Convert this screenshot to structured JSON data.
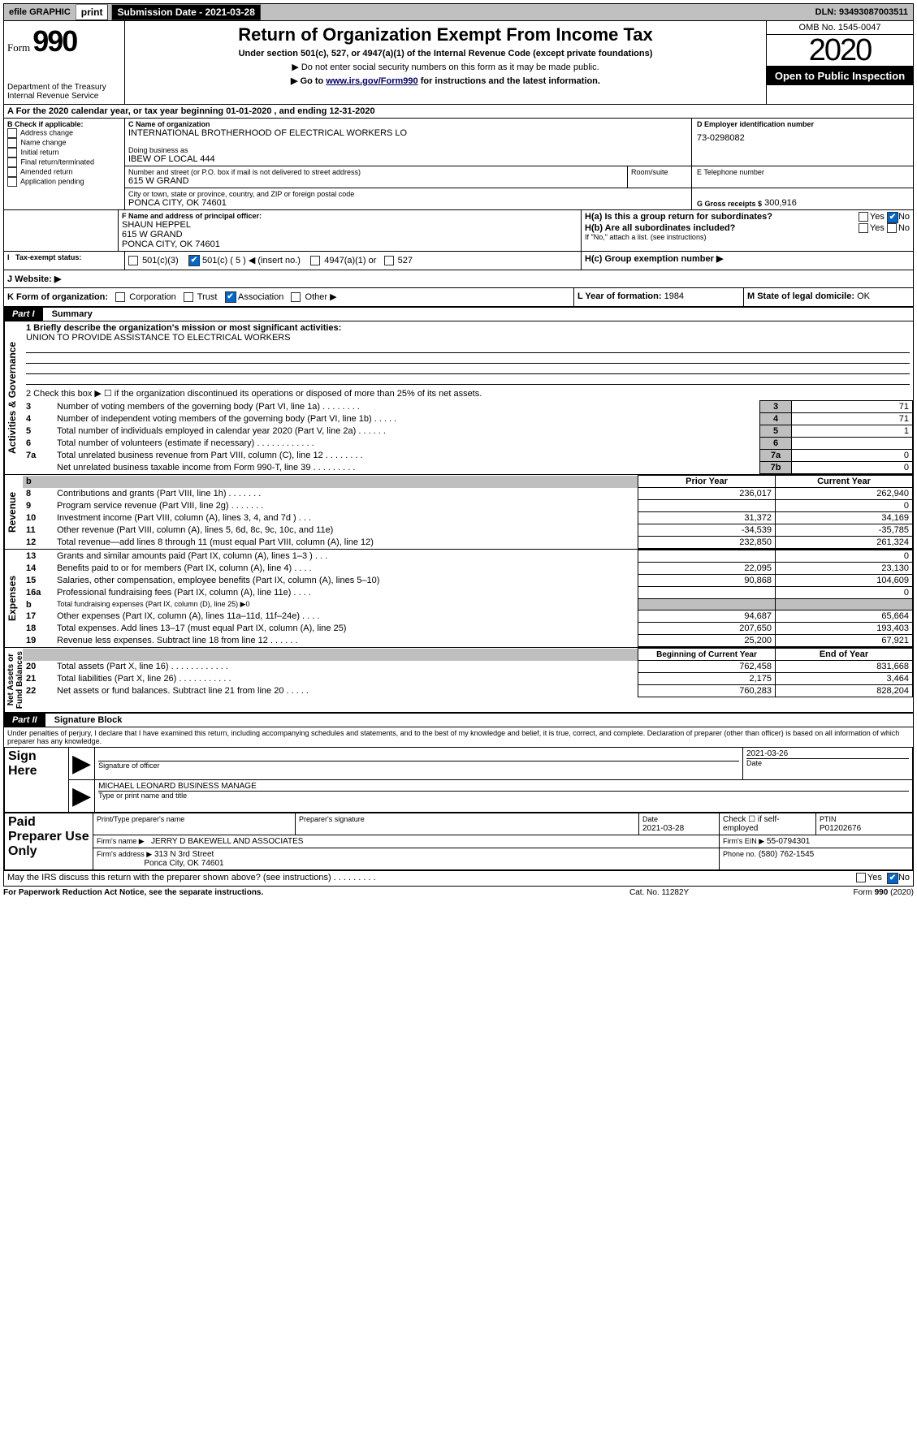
{
  "topbar": {
    "efile": "efile GRAPHIC",
    "print": "print",
    "subdate_label": "Submission Date - 2021-03-28",
    "dln": "DLN: 93493087003511"
  },
  "header": {
    "form_label": "Form",
    "form_num": "990",
    "dept": "Department of the Treasury\nInternal Revenue Service",
    "title": "Return of Organization Exempt From Income Tax",
    "subtitle": "Under section 501(c), 527, or 4947(a)(1) of the Internal Revenue Code (except private foundations)",
    "note1": "▶ Do not enter social security numbers on this form as it may be made public.",
    "note2_pre": "▶ Go to ",
    "note2_link": "www.irs.gov/Form990",
    "note2_post": " for instructions and the latest information.",
    "omb": "OMB No. 1545-0047",
    "year": "2020",
    "inspect": "Open to Public Inspection"
  },
  "period": {
    "text": "A   For the 2020 calendar year, or tax year beginning 01-01-2020    , and ending 12-31-2020"
  },
  "boxB": {
    "label": "B Check if applicable:",
    "items": [
      "Address change",
      "Name change",
      "Initial return",
      "Final return/terminated",
      "Amended return",
      "Application pending"
    ]
  },
  "boxC": {
    "name_label": "C Name of organization",
    "name": "INTERNATIONAL BROTHERHOOD OF ELECTRICAL WORKERS LO",
    "dba_label": "Doing business as",
    "dba": "IBEW OF LOCAL 444",
    "street_label": "Number and street (or P.O. box if mail is not delivered to street address)",
    "room_label": "Room/suite",
    "street": "615 W GRAND",
    "city_label": "City or town, state or province, country, and ZIP or foreign postal code",
    "city": "PONCA CITY, OK  74601"
  },
  "boxD": {
    "label": "D Employer identification number",
    "value": "73-0298082"
  },
  "boxE": {
    "label": "E Telephone number",
    "value": ""
  },
  "boxG": {
    "label": "G Gross receipts $",
    "value": "300,916"
  },
  "boxF": {
    "label": "F  Name and address of principal officer:",
    "name": "SHAUN HEPPEL",
    "addr1": "615 W GRAND",
    "addr2": "PONCA CITY, OK  74601"
  },
  "boxH": {
    "a_label": "H(a)  Is this a group return for subordinates?",
    "a_yes": "Yes",
    "a_no": "No",
    "b_label": "H(b)  Are all subordinates included?",
    "b_note": "If \"No,\" attach a list. (see instructions)",
    "c_label": "H(c)  Group exemption number ▶"
  },
  "taxexempt": {
    "label": "Tax-exempt status:",
    "opt1": "501(c)(3)",
    "opt2_pre": "501(c) ( 5 ) ◀ (insert no.)",
    "opt3": "4947(a)(1) or",
    "opt4": "527"
  },
  "website": {
    "label": "J   Website: ▶"
  },
  "boxK": {
    "label": "K Form of organization:",
    "opts": [
      "Corporation",
      "Trust",
      "Association",
      "Other ▶"
    ]
  },
  "boxL": {
    "label": "L Year of formation:",
    "value": "1984"
  },
  "boxM": {
    "label": "M State of legal domicile:",
    "value": "OK"
  },
  "part1": {
    "header": "Part I",
    "title": "Summary"
  },
  "p1_q1": {
    "label": "1  Briefly describe the organization's mission or most significant activities:",
    "text": "UNION TO PROVIDE ASSISTANCE TO ELECTRICAL WORKERS"
  },
  "p1_q2": "2   Check this box ▶ ☐  if the organization discontinued its operations or disposed of more than 25% of its net assets.",
  "p1_lines_top": [
    {
      "n": "3",
      "desc": "Number of voting members of the governing body (Part VI, line 1a)   .    .    .    .    .    .    .    .",
      "box": "3",
      "val": "71"
    },
    {
      "n": "4",
      "desc": "Number of independent voting members of the governing body (Part VI, line 1b)    .    .    .    .    .",
      "box": "4",
      "val": "71"
    },
    {
      "n": "5",
      "desc": "Total number of individuals employed in calendar year 2020 (Part V, line 2a)    .    .    .    .    .    .",
      "box": "5",
      "val": "1"
    },
    {
      "n": "6",
      "desc": "Total number of volunteers (estimate if necessary)    .    .    .    .    .    .    .    .    .    .    .    .",
      "box": "6",
      "val": ""
    },
    {
      "n": "7a",
      "desc": "Total unrelated business revenue from Part VIII, column (C), line 12    .    .    .    .    .    .    .    .",
      "box": "7a",
      "val": "0"
    },
    {
      "n": "",
      "desc": "Net unrelated business taxable income from Form 990-T, line 39    .    .    .    .    .    .    .    .    .",
      "box": "7b",
      "val": "0"
    }
  ],
  "rev_head": {
    "b": "b",
    "prior": "Prior Year",
    "current": "Current Year"
  },
  "revenue": [
    {
      "n": "8",
      "desc": "Contributions and grants (Part VIII, line 1h)    .    .    .    .    .    .    .",
      "p": "236,017",
      "c": "262,940"
    },
    {
      "n": "9",
      "desc": "Program service revenue (Part VIII, line 2g)    .    .    .    .    .    .    .",
      "p": "",
      "c": "0"
    },
    {
      "n": "10",
      "desc": "Investment income (Part VIII, column (A), lines 3, 4, and 7d )    .    .    .",
      "p": "31,372",
      "c": "34,169"
    },
    {
      "n": "11",
      "desc": "Other revenue (Part VIII, column (A), lines 5, 6d, 8c, 9c, 10c, and 11e)",
      "p": "-34,539",
      "c": "-35,785"
    },
    {
      "n": "12",
      "desc": "Total revenue—add lines 8 through 11 (must equal Part VIII, column (A), line 12)",
      "p": "232,850",
      "c": "261,324"
    }
  ],
  "expenses": [
    {
      "n": "13",
      "desc": "Grants and similar amounts paid (Part IX, column (A), lines 1–3 )    .    .    .",
      "p": "",
      "c": "0"
    },
    {
      "n": "14",
      "desc": "Benefits paid to or for members (Part IX, column (A), line 4)    .    .    .    .",
      "p": "22,095",
      "c": "23,130"
    },
    {
      "n": "15",
      "desc": "Salaries, other compensation, employee benefits (Part IX, column (A), lines 5–10)",
      "p": "90,868",
      "c": "104,609"
    },
    {
      "n": "16a",
      "desc": "Professional fundraising fees (Part IX, column (A), line 11e)    .    .    .    .",
      "p": "",
      "c": "0"
    },
    {
      "n": "b",
      "desc": "Total fundraising expenses (Part IX, column (D), line 25) ▶0",
      "p": "GREY",
      "c": "GREY"
    },
    {
      "n": "17",
      "desc": "Other expenses (Part IX, column (A), lines 11a–11d, 11f–24e)    .    .    .    .",
      "p": "94,687",
      "c": "65,664"
    },
    {
      "n": "18",
      "desc": "Total expenses. Add lines 13–17 (must equal Part IX, column (A), line 25)",
      "p": "207,650",
      "c": "193,403"
    },
    {
      "n": "19",
      "desc": "Revenue less expenses. Subtract line 18 from line 12    .    .    .    .    .    .",
      "p": "25,200",
      "c": "67,921"
    }
  ],
  "na_head": {
    "prior": "Beginning of Current Year",
    "current": "End of Year"
  },
  "netassets": [
    {
      "n": "20",
      "desc": "Total assets (Part X, line 16)    .    .    .    .    .    .    .    .    .    .    .    .",
      "p": "762,458",
      "c": "831,668"
    },
    {
      "n": "21",
      "desc": "Total liabilities (Part X, line 26)    .    .    .    .    .    .    .    .    .    .    .",
      "p": "2,175",
      "c": "3,464"
    },
    {
      "n": "22",
      "desc": "Net assets or fund balances. Subtract line 21 from line 20    .    .    .    .    .",
      "p": "760,283",
      "c": "828,204"
    }
  ],
  "vlabels": {
    "ag": "Activities & Governance",
    "rev": "Revenue",
    "exp": "Expenses",
    "na": "Net Assets or\nFund Balances"
  },
  "part2": {
    "header": "Part II",
    "title": "Signature Block"
  },
  "perjury": "Under penalties of perjury, I declare that I have examined this return, including accompanying schedules and statements, and to the best of my knowledge and belief, it is true, correct, and complete. Declaration of preparer (other than officer) is based on all information of which preparer has any knowledge.",
  "sign": {
    "here": "Sign Here",
    "sig_label": "Signature of officer",
    "date": "2021-03-26",
    "date_label": "Date",
    "typed": "MICHAEL LEONARD  BUSINESS MANAGE",
    "typed_label": "Type or print name and title"
  },
  "paid": {
    "title": "Paid Preparer Use Only",
    "prep_label": "Print/Type preparer's name",
    "sig_label": "Preparer's signature",
    "date_label": "Date",
    "date": "2021-03-28",
    "check_label": "Check ☐ if self-employed",
    "ptin_label": "PTIN",
    "ptin": "P01202676",
    "firm_label": "Firm's name    ▶",
    "firm": "JERRY D BAKEWELL AND ASSOCIATES",
    "ein_label": "Firm's EIN ▶",
    "ein": "55-0794301",
    "addr_label": "Firm's address ▶",
    "addr1": "313 N 3rd Street",
    "addr2": "Ponca City, OK  74601",
    "phone_label": "Phone no.",
    "phone": "(580) 762-1545"
  },
  "discuss": "May the IRS discuss this return with the preparer shown above? (see instructions)     .    .    .    .    .    .    .    .    .",
  "footer": {
    "left": "For Paperwork Reduction Act Notice, see the separate instructions.",
    "mid": "Cat. No. 11282Y",
    "right": "Form 990 (2020)"
  }
}
